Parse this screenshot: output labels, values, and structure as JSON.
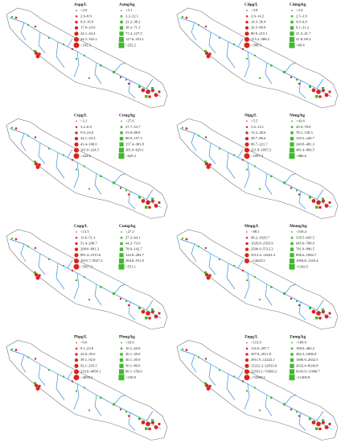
{
  "panels": [
    {
      "water": {
        "title": "Asμg/L",
        "classes": [
          "<2.8",
          "2.9–8.9",
          "9.0–16.9",
          "17.0–24.0",
          "24.1–44.4",
          "44.5–162.2",
          ">162.3"
        ]
      },
      "sediment": {
        "title": "Asmg/kg",
        "classes": [
          "<3.1",
          "3.2–22.1",
          "22.2–38.2",
          "38.3–71.3",
          "71.4–127.5",
          "127.6–252.1",
          ">252.2"
        ]
      }
    },
    {
      "water": {
        "title": "Cdμg/L",
        "classes": [
          "<3.8",
          "3.9–14.2",
          "14.3–36.4",
          "36.5–80.8",
          "80.9–215.1",
          "215.2–588.2",
          ">588.3"
        ]
      },
      "sediment": {
        "title": "Cdmg/kg",
        "classes": [
          "<2.4",
          "2.5–3.9",
          "4.0–6.0",
          "6.1–21.2",
          "21.3–41.7",
          "41.8–69.3",
          ">69.4"
        ]
      }
    },
    {
      "water": {
        "title": "Crμg/L",
        "classes": [
          "<3.1",
          "3.2–8.9",
          "9.0–24.0",
          "24.1–43.3",
          "43.4–100.0",
          "101.0–224.5",
          ">224.6"
        ]
      },
      "sediment": {
        "title": "Crmg/kg",
        "classes": [
          "<27.6",
          "27.7–53.7",
          "53.8–88.8",
          "88.9–157.3",
          "157.4–381.8",
          "381.9–629.1",
          ">629.2"
        ]
      }
    },
    {
      "water": {
        "title": "Niμg/L",
        "classes": [
          "<5.5",
          "5.6–13.1",
          "13.2–28.6",
          "28.7–86.6",
          "86.7–221.7",
          "221.8–1097.2",
          ">1097.3"
        ]
      },
      "sediment": {
        "title": "Nimg/kg",
        "classes": [
          "<43.8",
          "43.9–78.0",
          "78.1–120.3",
          "120.3–240.7",
          "240.8–481.3",
          "481.4–806.5",
          ">806.6"
        ]
      }
    },
    {
      "water": {
        "title": "Cuμg/L",
        "classes": [
          "<13.5",
          "13.6–51.3",
          "51.4–298.7",
          "298.8–891.3",
          "891.4–1915.6",
          "1915.7–5027.2",
          ">5027.3"
        ]
      },
      "sediment": {
        "title": "Cumg/kg",
        "classes": [
          "<27.2",
          "27.3–44.1",
          "44.2–73.9",
          "78.0–142.7",
          "142.8–284.7",
          "284.8–551.0",
          ">551.1"
        ]
      }
    },
    {
      "water": {
        "title": "Mnμg/L",
        "classes": [
          "<98.1",
          "98.2–1029.7",
          "1029.8–2505.9",
          "2506.0–5512.3",
          "5512.4–12623.4",
          ">12623.5"
        ]
      },
      "sediment": {
        "title": "Mnmg/kg",
        "classes": [
          "<518.4",
          "518.5–645.5",
          "645.6–780.9",
          "781.0–896.5",
          "896.6–1084.7",
          "1084.8–1343.4",
          ">1343.5"
        ]
      }
    },
    {
      "water": {
        "title": "Pbμg/L",
        "classes": [
          "<9.0",
          "9.1–23.9",
          "24.0–39.0",
          "39.1–92.0",
          "92.1–216.5",
          "216.6–4058.1",
          ">4058.2"
        ]
      },
      "sediment": {
        "title": "Pbmg/kg",
        "classes": [
          "<10.0",
          "10.1–20.0",
          "20.1–30.0",
          "30.1–50.0",
          "50.1–80.0",
          "80.1–150.0",
          ">150.0"
        ]
      }
    },
    {
      "water": {
        "title": "Znμg/L",
        "classes": [
          "<113.9",
          "114.0–297.7",
          "297.8–2911.8",
          "2911.9–12222.1",
          "12222.2–22933.0",
          "22933.1–74369.2",
          ">74369.3"
        ]
      },
      "sediment": {
        "title": "Znmg/kg",
        "classes": [
          "<189.9",
          "190.0–482.2",
          "482.3–1006.8",
          "1006.9–2632.3",
          "2632.4–8343.8",
          "8343.9–11400.7",
          ">11400.8"
        ]
      }
    }
  ]
}
